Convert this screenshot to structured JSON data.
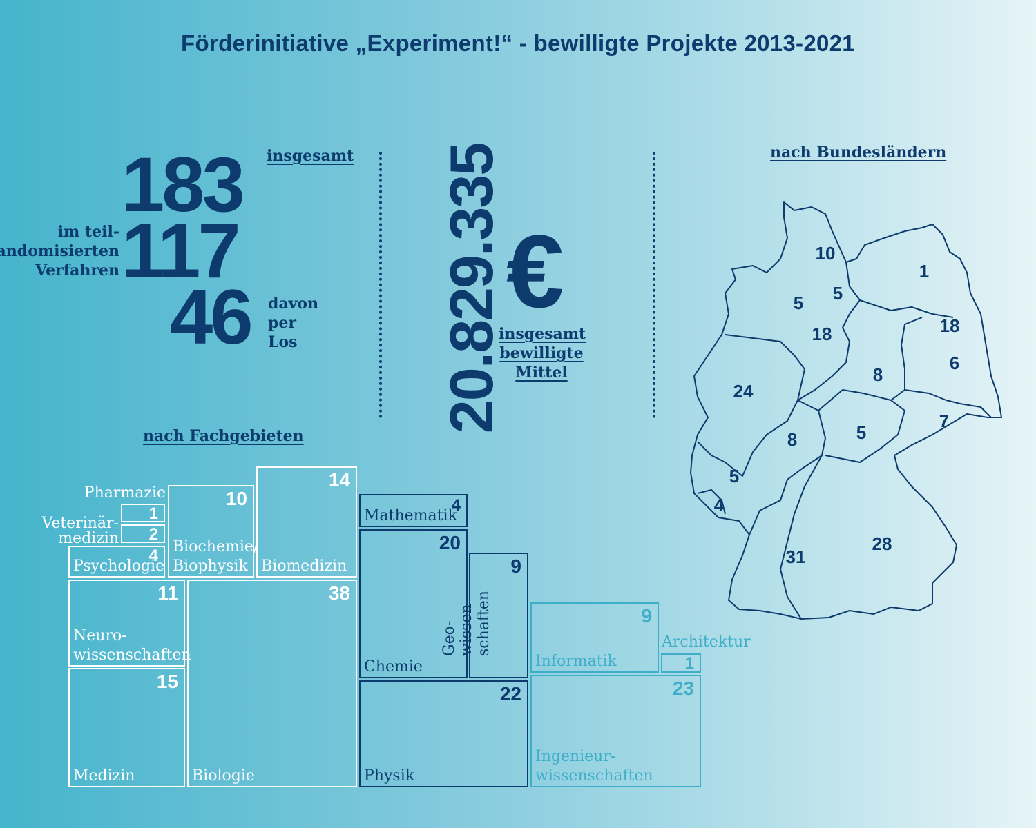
{
  "title": "Förderinitiative „Experiment!“ - bewilligte Projekte 2013-2021",
  "totals": {
    "total": "183",
    "total_label": "insgesamt",
    "partial": "117",
    "partial_label": [
      "im teil-",
      "randomisierten",
      "Verfahren"
    ],
    "lottery": "46",
    "lottery_label": [
      "davon",
      "per",
      "Los"
    ]
  },
  "funding": {
    "amount": "20.829.335",
    "currency": "€",
    "label": [
      "insgesamt",
      "bewilligte",
      "Mittel"
    ]
  },
  "colors": {
    "dark": "#0d3b6e",
    "white": "#ffffff",
    "light": "#3faec9"
  },
  "chart_data": [
    {
      "type": "table",
      "title": "nach Fachgebieten",
      "categories": [
        "Pharmazie",
        "Veterinärmedizin",
        "Psychologie",
        "Biochemie/Biophysik",
        "Biomedizin",
        "Neurowissenschaften",
        "Medizin",
        "Biologie",
        "Mathematik",
        "Chemie",
        "Geowissenschaften",
        "Physik",
        "Informatik",
        "Architektur",
        "Ingenieurwissenschaften"
      ],
      "values": [
        1,
        2,
        4,
        10,
        14,
        11,
        15,
        38,
        4,
        20,
        9,
        22,
        9,
        1,
        23
      ],
      "labels": {
        "Pharmazie": "Pharmazie",
        "Veterinaer": "Veterinär-\nmedizin",
        "Psychologie": "Psychologie",
        "Biochemie": "Biochemie/\nBiophysik",
        "Biomedizin": "Biomedizin",
        "Neuro": "Neuro-\nwissenschaften",
        "Medizin": "Medizin",
        "Biologie": "Biologie",
        "Mathematik": "Mathematik",
        "Chemie": "Chemie",
        "Geo": "Geo-\nwissen-\nschaften",
        "Physik": "Physik",
        "Informatik": "Informatik",
        "Architektur": "Architektur",
        "Ingenieur": "Ingenieur-\nwissenschaften"
      }
    },
    {
      "type": "table",
      "title": "nach Bundesländern",
      "regions": [
        "Schleswig-Holstein",
        "Mecklenburg-Vorpommern",
        "Bremen",
        "Hamburg",
        "Niedersachsen",
        "Berlin",
        "Brandenburg",
        "Sachsen-Anhalt",
        "Nordrhein-Westfalen",
        "Hessen",
        "Thüringen",
        "Sachsen",
        "Rheinland-Pfalz",
        "Saarland",
        "Baden-Württemberg",
        "Bayern"
      ],
      "values": [
        10,
        1,
        5,
        5,
        18,
        18,
        6,
        8,
        24,
        8,
        5,
        7,
        5,
        4,
        31,
        28
      ]
    }
  ]
}
